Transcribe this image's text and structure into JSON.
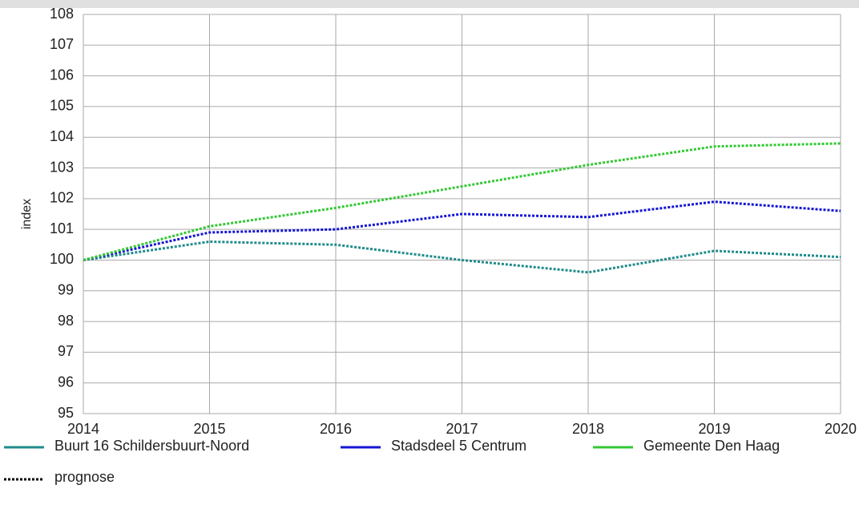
{
  "chart_data": {
    "type": "line",
    "ylabel": "index",
    "x": [
      2014,
      2015,
      2016,
      2017,
      2018,
      2019,
      2020
    ],
    "xlim": [
      2014,
      2020
    ],
    "xticks": [
      2014,
      2015,
      2016,
      2017,
      2018,
      2019,
      2020
    ],
    "ylim": [
      95,
      108
    ],
    "yticks": [
      95,
      96,
      97,
      98,
      99,
      100,
      101,
      102,
      103,
      104,
      105,
      106,
      107,
      108
    ],
    "grid": true,
    "line_style": "dotted",
    "legend": "bottom",
    "series": [
      {
        "name": "Buurt 16 Schildersbuurt-Noord",
        "color": "#208b8b",
        "values": [
          100,
          100.6,
          100.5,
          100,
          99.6,
          100.3,
          100.1
        ]
      },
      {
        "name": "Stadsdeel 5 Centrum",
        "color": "#1515d4",
        "values": [
          100,
          100.9,
          101,
          101.5,
          101.4,
          101.9,
          101.6
        ]
      },
      {
        "name": "Gemeente Den Haag",
        "color": "#33c833",
        "values": [
          100,
          101.1,
          101.7,
          102.4,
          103.1,
          103.7,
          103.8
        ]
      }
    ],
    "prognose_label": "prognose"
  }
}
